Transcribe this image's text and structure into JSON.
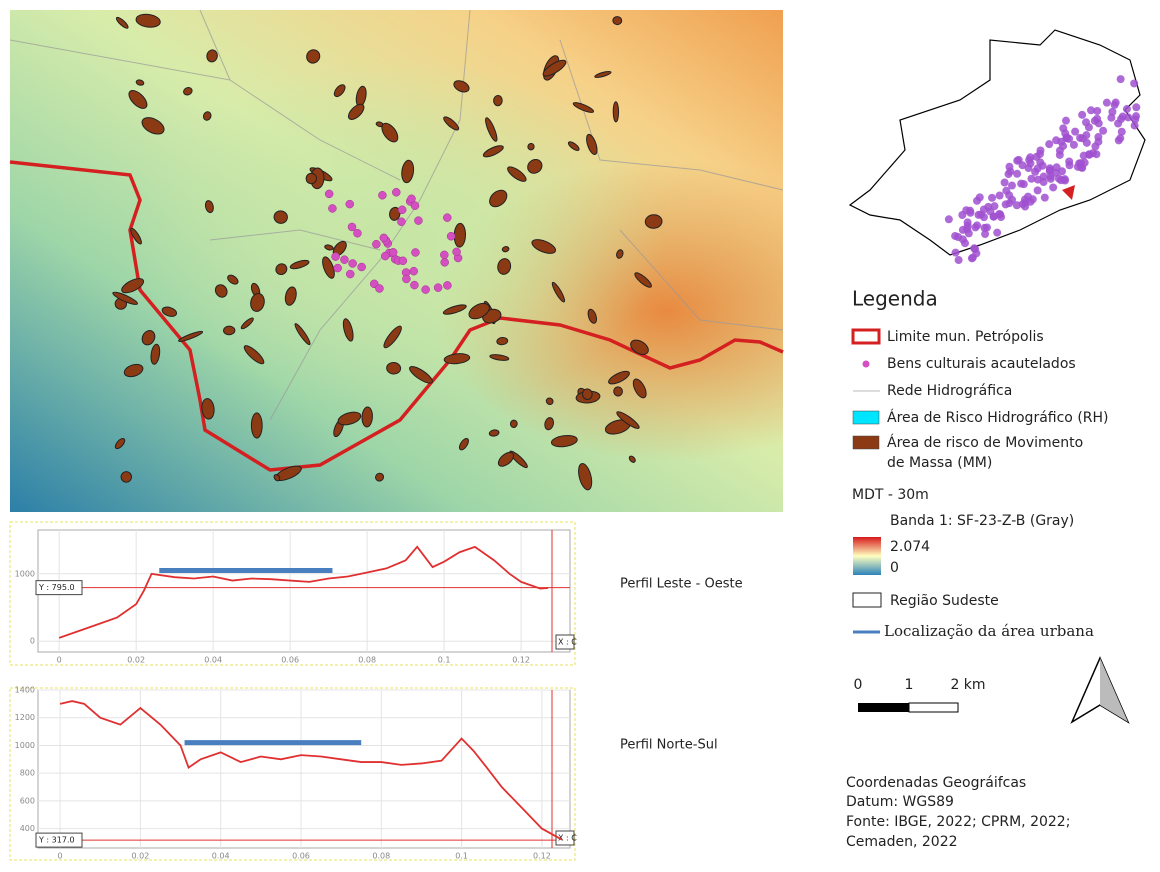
{
  "legend": {
    "title": "Legenda",
    "items": [
      "Limite mun. Petrópolis",
      "Bens culturais acautelados",
      "Rede Hidrográfica",
      "Área de Risco Hidrográfico (RH)",
      "Área de risco de Movimento",
      "de Massa (MM)"
    ],
    "mdt_title": "MDT - 30m",
    "band": "Banda 1: SF-23-Z-B (Gray)",
    "max": "2.074",
    "min": "0",
    "region": "Região Sudeste",
    "urban": "Localização da área urbana"
  },
  "scale": {
    "labels": [
      "0",
      "1",
      "2 km"
    ]
  },
  "source": {
    "lines": [
      "Coordenadas Geográifcas",
      "Datum: WGS89",
      "Fonte:  IBGE,  2022;  CPRM,  2022;",
      "Cemaden, 2022"
    ]
  },
  "profiles": [
    {
      "title": "Perfil Leste - Oeste",
      "xlim": [
        -0.0055,
        0.1327
      ],
      "ylim": [
        -160,
        1650
      ],
      "xticks": [
        0,
        0.02,
        0.04,
        0.06,
        0.08,
        0.1,
        0.12
      ],
      "yticks": [
        0,
        1000
      ],
      "x": [
        0,
        0.005,
        0.01,
        0.015,
        0.02,
        0.022,
        0.024,
        0.03,
        0.035,
        0.04,
        0.045,
        0.05,
        0.055,
        0.06,
        0.065,
        0.07,
        0.075,
        0.08,
        0.085,
        0.09,
        0.093,
        0.097,
        0.1,
        0.104,
        0.108,
        0.113,
        0.117,
        0.12,
        0.125,
        0.127
      ],
      "values": [
        50,
        150,
        250,
        350,
        550,
        750,
        1000,
        950,
        930,
        960,
        900,
        930,
        920,
        900,
        880,
        930,
        960,
        1020,
        1080,
        1200,
        1400,
        1100,
        1180,
        1320,
        1400,
        1200,
        1000,
        880,
        780,
        790
      ],
      "ref": {
        "value": 795,
        "label": "Y : 795.0"
      },
      "cursor": "X : C",
      "urban_x": [
        0.026,
        0.071
      ],
      "urban_level": 1050
    },
    {
      "title": "Perfil Norte-Sul",
      "xlim": [
        -0.0055,
        0.127
      ],
      "ylim": [
        260,
        1400
      ],
      "xticks": [
        0,
        0.02,
        0.04,
        0.06,
        0.08,
        0.1,
        0.12
      ],
      "yticks": [
        400,
        600,
        800,
        1000,
        1200,
        1400
      ],
      "x": [
        0,
        0.003,
        0.006,
        0.01,
        0.015,
        0.02,
        0.025,
        0.03,
        0.032,
        0.035,
        0.04,
        0.045,
        0.05,
        0.055,
        0.06,
        0.065,
        0.07,
        0.075,
        0.08,
        0.085,
        0.09,
        0.095,
        0.1,
        0.103,
        0.106,
        0.11,
        0.115,
        0.12,
        0.125
      ],
      "values": [
        1300,
        1320,
        1300,
        1200,
        1150,
        1270,
        1150,
        1000,
        840,
        900,
        950,
        880,
        920,
        900,
        930,
        920,
        900,
        880,
        880,
        860,
        870,
        890,
        1050,
        960,
        850,
        700,
        550,
        400,
        320
      ],
      "ref": {
        "value": 317,
        "label": "Y : 317.0"
      },
      "cursor": "X : C",
      "urban_x": [
        0.031,
        0.075
      ],
      "urban_level": 1020
    }
  ]
}
